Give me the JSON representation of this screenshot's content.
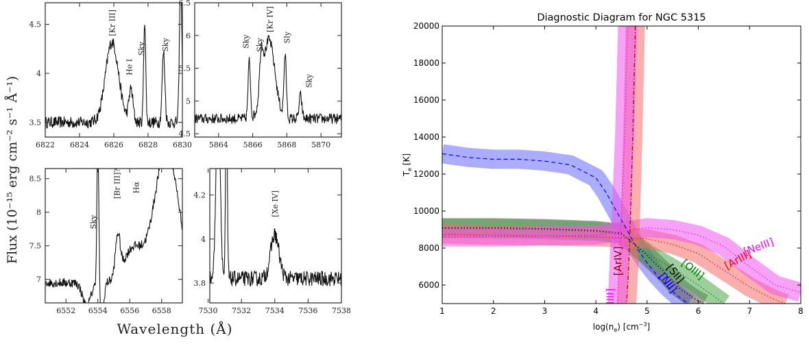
{
  "chart_data": [
    {
      "type": "line",
      "panel": "top-left",
      "ylabel": "Flux (10⁻¹⁵ erg cm⁻² s⁻¹ Å⁻¹)",
      "xlabel": "Wavelength (Å)",
      "xlim": [
        6822,
        6830
      ],
      "ylim": [
        3.35,
        4.72
      ],
      "xticks": [
        "6822",
        "6824",
        "6826",
        "6828",
        "6830"
      ],
      "yticks": [
        "3.5",
        "4",
        "4.5"
      ],
      "ytick_values": [
        3.5,
        4,
        4.5
      ],
      "baseline": 3.5,
      "noise": 0.06,
      "peaks": [
        [
          6825.9,
          0.82,
          0.38
        ],
        [
          6827.0,
          0.33,
          0.12
        ],
        [
          6827.8,
          1.05,
          0.06
        ],
        [
          6828.9,
          0.72,
          0.08
        ],
        [
          6829.9,
          1.5,
          0.07
        ]
      ],
      "annotations": [
        {
          "text": "[Kr III]",
          "x": 6825.9,
          "y": 4.38
        },
        {
          "text": "He I",
          "x": 6826.9,
          "y": 3.98
        },
        {
          "text": "Sky",
          "x": 6827.6,
          "y": 4.18
        },
        {
          "text": "Sky",
          "x": 6829.0,
          "y": 4.22
        }
      ]
    },
    {
      "type": "line",
      "panel": "top-right",
      "xlim": [
        5862.6,
        5871.2
      ],
      "ylim": [
        4.45,
        6.5
      ],
      "xticks": [
        "5864",
        "5866",
        "5868",
        "5870"
      ],
      "xtick_values": [
        5864,
        5866,
        5868,
        5870
      ],
      "yticks": [
        "4.5",
        "5",
        "5.5",
        "6",
        "6.5"
      ],
      "ytick_values": [
        4.5,
        5,
        5.5,
        6,
        6.5
      ],
      "baseline": 4.73,
      "noise": 0.08,
      "peaks": [
        [
          5865.8,
          0.88,
          0.07
        ],
        [
          5866.5,
          0.6,
          0.1
        ],
        [
          5866.95,
          1.2,
          0.35
        ],
        [
          5867.9,
          0.95,
          0.07
        ],
        [
          5868.8,
          0.35,
          0.08
        ]
      ],
      "annotations": [
        {
          "text": "Sky",
          "x": 5865.6,
          "y": 5.8
        },
        {
          "text": "Sky",
          "x": 5866.4,
          "y": 5.75
        },
        {
          "text": "[Kr IV]",
          "x": 5867.0,
          "y": 6.05
        },
        {
          "text": "Sly",
          "x": 5868.0,
          "y": 5.88
        },
        {
          "text": "Sky",
          "x": 5869.3,
          "y": 5.2
        }
      ]
    },
    {
      "type": "line",
      "panel": "bottom-left",
      "xlim": [
        6550.7,
        6559.3
      ],
      "ylim": [
        6.65,
        8.65
      ],
      "xticks": [
        "6552",
        "6554",
        "6556",
        "6558"
      ],
      "xtick_values": [
        6552,
        6554,
        6556,
        6558
      ],
      "yticks": [
        "7",
        "7.5",
        "8",
        "8.5"
      ],
      "ytick_values": [
        7,
        7.5,
        8,
        8.5
      ],
      "baseline": 6.95,
      "noise": 0.07,
      "peaks": [
        [
          6554.0,
          2.2,
          0.06
        ],
        [
          6555.25,
          0.6,
          0.15
        ],
        [
          6556.2,
          0.5,
          0.6
        ],
        [
          6558.3,
          2.0,
          0.75
        ]
      ],
      "dips": [
        [
          6553.3,
          0.35,
          0.25
        ],
        [
          6554.25,
          0.55,
          0.12
        ]
      ],
      "annotations": [
        {
          "text": "Sky",
          "x": 6553.7,
          "y": 7.75
        },
        {
          "text": "[Br III]?",
          "x": 6555.2,
          "y": 8.2
        },
        {
          "text": "Hα",
          "x": 6556.4,
          "y": 8.28
        }
      ]
    },
    {
      "type": "line",
      "panel": "bottom-right",
      "xlim": [
        7530.1,
        7538.0
      ],
      "ylim": [
        3.71,
        4.32
      ],
      "xticks": [
        "7530",
        "7532",
        "7534",
        "7536",
        "7538"
      ],
      "xtick_values": [
        7530,
        7532,
        7534,
        7536,
        7538
      ],
      "yticks": [
        "3.8",
        "4",
        "4.2"
      ],
      "ytick_values": [
        3.8,
        4.0,
        4.2
      ],
      "baseline": 3.82,
      "noise": 0.035,
      "peaks": [
        [
          7530.6,
          0.9,
          0.12
        ],
        [
          7531.1,
          0.9,
          0.05
        ],
        [
          7534.0,
          0.2,
          0.25
        ]
      ],
      "annotations": [
        {
          "text": "[Xe IV]",
          "x": 7534.0,
          "y": 4.1
        }
      ]
    },
    {
      "type": "line",
      "title": "Diagnostic Diagram for NGC 5315",
      "xlabel": "log(n",
      "xlabel_sub": "e",
      "xlabel_tail": ") [cm",
      "xlabel_sup": "−3",
      "xlabel_end": "]",
      "ylabel": "T",
      "ylabel_sub": "e",
      "ylabel_tail": " [K]",
      "xlim": [
        1,
        8
      ],
      "ylim": [
        5000,
        20000
      ],
      "xticks": [
        "1",
        "2",
        "3",
        "4",
        "5",
        "6",
        "7",
        "8"
      ],
      "xtick_values": [
        1,
        2,
        3,
        4,
        5,
        6,
        7,
        8
      ],
      "yticks": [
        "6000",
        "8000",
        "10000",
        "12000",
        "14000",
        "16000",
        "18000",
        "20000"
      ],
      "ytick_values": [
        6000,
        8000,
        10000,
        12000,
        14000,
        16000,
        18000,
        20000
      ],
      "series": [
        {
          "name": "[NII]",
          "color": "#0000ff",
          "band": "#6a6aff",
          "style": "dashed",
          "x": [
            1,
            1.5,
            2,
            2.5,
            3,
            3.5,
            4,
            4.2,
            4.4,
            4.6,
            4.8,
            5,
            5.2,
            5.4,
            5.6,
            5.8
          ],
          "y": [
            13100,
            12900,
            12800,
            12800,
            12700,
            12500,
            11800,
            11000,
            10000,
            9000,
            8000,
            7200,
            6500,
            5900,
            5400,
            5000
          ],
          "label_x": 5.35,
          "label_y": 6000
        },
        {
          "name": "[SII]",
          "color": "#000000",
          "band": "#555555",
          "style": "dotted",
          "x": [
            1,
            2,
            3,
            4,
            4.5,
            5,
            5.3,
            5.6,
            5.9,
            6.1
          ],
          "y": [
            9100,
            9100,
            9050,
            8950,
            8800,
            7600,
            6800,
            5900,
            5300,
            5000
          ],
          "label_x": 5.5,
          "label_y": 6500
        },
        {
          "name": "[OIII]",
          "color": "#008000",
          "band": "#4aa84a",
          "style": "dotted",
          "x": [
            1,
            2,
            3,
            4,
            4.5,
            5,
            5.5,
            6,
            6.3,
            6.5
          ],
          "y": [
            9050,
            9050,
            9000,
            8900,
            8750,
            7700,
            6900,
            6000,
            5400,
            5000
          ],
          "label_x": 5.85,
          "label_y": 6700
        },
        {
          "name": "[ArIII]",
          "color": "#ff0000",
          "band": "#f56c6c",
          "style": "dotted",
          "x": [
            1,
            2,
            3,
            4,
            5,
            5.5,
            6,
            6.5,
            7,
            7.5,
            7.7
          ],
          "y": [
            8750,
            8700,
            8650,
            8600,
            8500,
            8200,
            7700,
            6800,
            5900,
            5200,
            5000
          ],
          "label_x": 6.8,
          "label_y": 7200
        },
        {
          "name": "[NeIII]",
          "color": "#ff00ff",
          "band": "#ef55ef",
          "style": "dotted",
          "x": [
            1,
            2,
            3,
            4,
            4.5,
            5,
            5.5,
            6,
            6.5,
            7,
            7.5,
            8
          ],
          "y": [
            8600,
            8600,
            8650,
            8700,
            8900,
            9100,
            9000,
            8700,
            8100,
            7000,
            6000,
            5600
          ],
          "label_x": 7.2,
          "label_y": 7900
        },
        {
          "name": "[ArIV]",
          "color": "#8b0000",
          "band": "#f56c6c",
          "style": "dashdot",
          "x": [
            4.77,
            4.72,
            4.68,
            4.64,
            4.6
          ],
          "y": [
            20000,
            14000,
            10000,
            7000,
            5000
          ],
          "label_x": 4.5,
          "label_y": 7300
        },
        {
          "name": "[ClIII]",
          "color": "#ff00ff",
          "band": "#ef55ef",
          "style": "dotted",
          "x": [
            4.42,
            4.45,
            4.5,
            4.56,
            4.62
          ],
          "y": [
            5000,
            7000,
            10000,
            14000,
            20000
          ],
          "label_x": 4.35,
          "label_y": 5100
        }
      ]
    }
  ]
}
